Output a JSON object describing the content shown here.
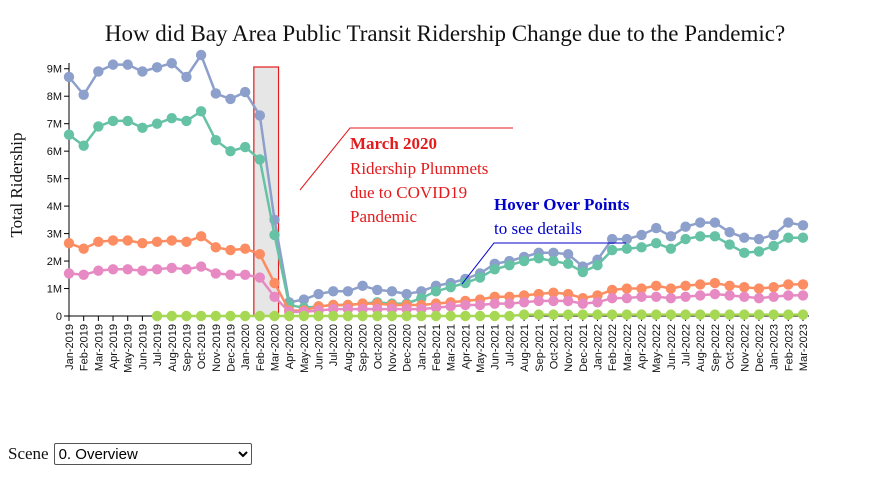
{
  "chart_data": {
    "type": "line",
    "title": "How did Bay Area Public Transit Ridership Change due to the Pandemic?",
    "xlabel": "",
    "ylabel": "Total Ridership",
    "ylim": [
      0,
      9500000
    ],
    "yticks": [
      0,
      1000000,
      2000000,
      3000000,
      4000000,
      5000000,
      6000000,
      7000000,
      8000000,
      9000000
    ],
    "ytick_labels": [
      "0",
      "1M",
      "2M",
      "3M",
      "4M",
      "5M",
      "6M",
      "7M",
      "8M",
      "9M"
    ],
    "grid": false,
    "legend": "none",
    "categories": [
      "Jan-2019",
      "Feb-2019",
      "Mar-2019",
      "Apr-2019",
      "May-2019",
      "Jun-2019",
      "Jul-2019",
      "Aug-2019",
      "Sep-2019",
      "Oct-2019",
      "Nov-2019",
      "Dec-2019",
      "Jan-2020",
      "Feb-2020",
      "Mar-2020",
      "Apr-2020",
      "May-2020",
      "Jun-2020",
      "Jul-2020",
      "Aug-2020",
      "Sep-2020",
      "Oct-2020",
      "Nov-2020",
      "Dec-2020",
      "Jan-2021",
      "Feb-2021",
      "Mar-2021",
      "Apr-2021",
      "May-2021",
      "Jun-2021",
      "Jul-2021",
      "Aug-2021",
      "Sep-2021",
      "Oct-2021",
      "Nov-2021",
      "Dec-2021",
      "Jan-2022",
      "Feb-2022",
      "Mar-2022",
      "Apr-2022",
      "May-2022",
      "Jun-2022",
      "Jul-2022",
      "Aug-2022",
      "Sep-2022",
      "Oct-2022",
      "Nov-2022",
      "Dec-2022",
      "Jan-2023",
      "Feb-2023",
      "Mar-2023"
    ],
    "series": [
      {
        "color": "#8da0cb",
        "values": [
          8700000,
          8050000,
          8900000,
          9150000,
          9150000,
          8900000,
          9050000,
          9200000,
          8700000,
          9500000,
          8100000,
          7900000,
          8150000,
          7300000,
          3500000,
          500000,
          600000,
          800000,
          900000,
          900000,
          1100000,
          950000,
          900000,
          800000,
          900000,
          1100000,
          1200000,
          1350000,
          1550000,
          1900000,
          2000000,
          2150000,
          2300000,
          2300000,
          2250000,
          1800000,
          2050000,
          2800000,
          2800000,
          2950000,
          3200000,
          2900000,
          3250000,
          3400000,
          3400000,
          3050000,
          2850000,
          2800000,
          2950000,
          3400000,
          3300000
        ]
      },
      {
        "color": "#66c2a5",
        "values": [
          6600000,
          6200000,
          6900000,
          7100000,
          7100000,
          6850000,
          7000000,
          7200000,
          7100000,
          7450000,
          6400000,
          6000000,
          6150000,
          5700000,
          2950000,
          400000,
          300000,
          350000,
          400000,
          400000,
          450000,
          500000,
          450000,
          450000,
          650000,
          900000,
          1050000,
          1200000,
          1400000,
          1700000,
          1850000,
          2000000,
          2100000,
          2000000,
          1900000,
          1600000,
          1850000,
          2400000,
          2450000,
          2500000,
          2650000,
          2450000,
          2800000,
          2900000,
          2900000,
          2600000,
          2300000,
          2350000,
          2550000,
          2850000,
          2850000
        ]
      },
      {
        "color": "#fc8d62",
        "values": [
          2650000,
          2450000,
          2700000,
          2750000,
          2750000,
          2650000,
          2700000,
          2750000,
          2700000,
          2900000,
          2500000,
          2400000,
          2450000,
          2250000,
          1200000,
          200000,
          200000,
          350000,
          400000,
          400000,
          450000,
          450000,
          400000,
          400000,
          400000,
          450000,
          500000,
          550000,
          600000,
          700000,
          700000,
          750000,
          800000,
          850000,
          800000,
          650000,
          750000,
          950000,
          1000000,
          1000000,
          1100000,
          1000000,
          1100000,
          1150000,
          1200000,
          1100000,
          1050000,
          1000000,
          1050000,
          1150000,
          1150000
        ]
      },
      {
        "color": "#e78ac3",
        "values": [
          1550000,
          1500000,
          1650000,
          1700000,
          1700000,
          1650000,
          1700000,
          1750000,
          1700000,
          1800000,
          1550000,
          1500000,
          1500000,
          1400000,
          700000,
          150000,
          150000,
          200000,
          250000,
          250000,
          250000,
          250000,
          250000,
          250000,
          250000,
          300000,
          350000,
          400000,
          400000,
          450000,
          450000,
          500000,
          550000,
          550000,
          550000,
          450000,
          500000,
          650000,
          650000,
          700000,
          700000,
          650000,
          700000,
          750000,
          800000,
          750000,
          700000,
          650000,
          700000,
          750000,
          750000
        ]
      },
      {
        "color": "#a6d854",
        "values": [
          null,
          null,
          null,
          null,
          null,
          null,
          0,
          0,
          0,
          0,
          0,
          0,
          0,
          0,
          0,
          0,
          0,
          0,
          0,
          0,
          0,
          0,
          0,
          0,
          0,
          0,
          0,
          0,
          0,
          0,
          0,
          50000,
          50000,
          50000,
          50000,
          50000,
          50000,
          50000,
          50000,
          50000,
          50000,
          50000,
          50000,
          50000,
          50000,
          50000,
          50000,
          50000,
          50000,
          50000,
          50000
        ]
      }
    ],
    "highlight": {
      "from": "Feb-2020",
      "to": "Mar-2020"
    },
    "annotations": [
      {
        "color": "#e41a1c",
        "heading": "March 2020",
        "lines": [
          "Ridership Plummets",
          "due to COVID19",
          "Pandemic"
        ]
      },
      {
        "color": "#0000cc",
        "heading": "Hover Over Points",
        "lines": [
          "to see details"
        ]
      }
    ]
  },
  "controls": {
    "scene_label": "Scene",
    "scene_selected": "0. Overview"
  }
}
